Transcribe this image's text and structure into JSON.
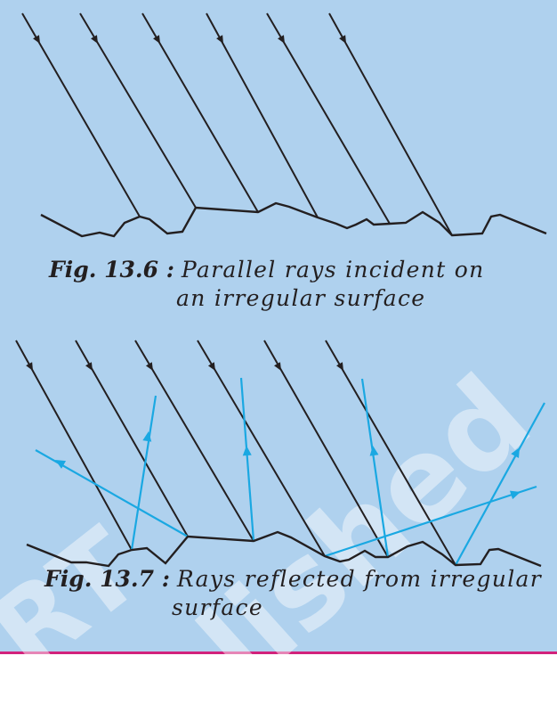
{
  "colors": {
    "panel_background": "#afd1ee",
    "incident_ray": "#231f20",
    "reflected_ray": "#1aa8e2",
    "bottom_rule": "#d2227c"
  },
  "figure_1": {
    "label": "Fig. 13.6 :",
    "caption_line1": "Parallel rays incident on",
    "caption_line2": "an irregular surface"
  },
  "figure_2": {
    "label": "Fig. 13.7 :",
    "caption_line1": "Rays reflected from irregular",
    "caption_line2": "surface"
  },
  "watermark": {
    "text_1": "RT",
    "text_2": "lished"
  }
}
